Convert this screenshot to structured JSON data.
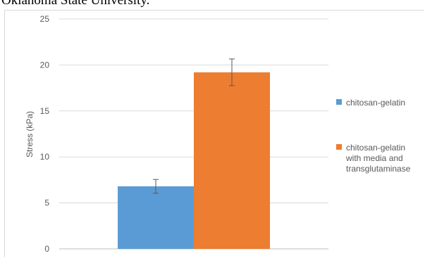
{
  "header": {
    "caption": "Oklahoma State University."
  },
  "chart_data": {
    "type": "bar",
    "title": "",
    "xlabel": "",
    "ylabel": "Stress (kPa)",
    "ylim": [
      0,
      25
    ],
    "yticks": [
      "0",
      "5",
      "10",
      "15",
      "20",
      "25"
    ],
    "grid": true,
    "legend_position": "right",
    "categories": [
      ""
    ],
    "series": [
      {
        "name": "chitosan-gelatin",
        "values": [
          6.8
        ],
        "error": [
          0.75
        ],
        "color": "#5b9bd5"
      },
      {
        "name": "chitosan-gelatin with media and transglutaminase",
        "values": [
          19.2
        ],
        "error": [
          1.45
        ],
        "color": "#ed7d31"
      }
    ],
    "legend": [
      {
        "lines": [
          "chitosan-gelatin"
        ]
      },
      {
        "lines": [
          "chitosan-gelatin",
          "with media and",
          "transglutaminase"
        ]
      }
    ]
  }
}
